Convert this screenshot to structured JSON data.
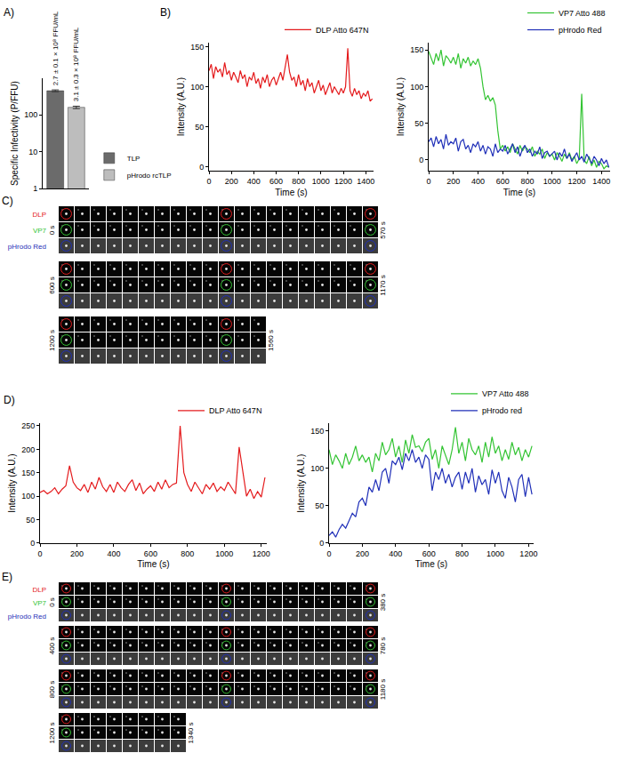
{
  "chart_data": [
    {
      "panel_label": "A)",
      "type": "bar",
      "categories": [
        null,
        null
      ],
      "series": [
        {
          "name": "TLP",
          "color": "#6b6b6b",
          "values": [
            450,
            null
          ],
          "errors": [
            25,
            null
          ]
        },
        {
          "name": "pHrodo rcTLP",
          "color": "#bdbdbd",
          "values": [
            null,
            160
          ],
          "errors": [
            null,
            12
          ]
        }
      ],
      "y_label": "Specific Infectivity (P/FFU)",
      "log": "y",
      "ylim": [
        1,
        1000
      ],
      "yticks": [
        1,
        10,
        100
      ],
      "annotations": [
        {
          "x": 0,
          "text": "2.7 ± 0.1 × 10⁸ FFU/mL"
        },
        {
          "x": 1,
          "text": "3.1 ± 0.3 × 10⁸ FFU/mL"
        }
      ],
      "tick_labels": "y",
      "legend": "right",
      "grid": false
    },
    {
      "panel_label": "B)",
      "type": "line",
      "x": [
        0,
        20,
        40,
        60,
        80,
        100,
        120,
        140,
        160,
        180,
        200,
        220,
        240,
        260,
        280,
        300,
        320,
        340,
        360,
        380,
        400,
        420,
        440,
        460,
        480,
        500,
        520,
        540,
        560,
        580,
        600,
        620,
        640,
        660,
        680,
        700,
        720,
        740,
        760,
        780,
        800,
        820,
        840,
        860,
        880,
        900,
        920,
        940,
        960,
        980,
        1000,
        1020,
        1040,
        1060,
        1080,
        1100,
        1120,
        1140,
        1160,
        1180,
        1200,
        1220,
        1240,
        1260,
        1280,
        1300,
        1320,
        1340,
        1360,
        1380,
        1400,
        1420,
        1440,
        1460
      ],
      "series": [
        {
          "name": "DLP Atto 647N",
          "color": "#e41a1c",
          "values": [
            120,
            128,
            110,
            125,
            118,
            122,
            112,
            130,
            115,
            120,
            108,
            118,
            112,
            105,
            120,
            110,
            115,
            100,
            112,
            108,
            118,
            104,
            110,
            98,
            112,
            105,
            115,
            100,
            108,
            112,
            102,
            110,
            118,
            108,
            125,
            140,
            118,
            108,
            112,
            100,
            115,
            102,
            108,
            95,
            110,
            100,
            105,
            92,
            100,
            108,
            95,
            102,
            90,
            98,
            105,
            92,
            100,
            95,
            90,
            98,
            92,
            100,
            148,
            95,
            88,
            98,
            90,
            95,
            85,
            92,
            88,
            95,
            82,
            85
          ]
        }
      ],
      "x_label": "Time (s)",
      "y_label": "Intensity (A.U.)",
      "xlim": [
        0,
        1470
      ],
      "xticks": [
        0,
        200,
        400,
        600,
        800,
        1000,
        1200,
        1400
      ],
      "ylim": [
        -5,
        155
      ],
      "yticks": [
        0,
        50,
        100,
        150
      ],
      "legend": "upper right",
      "grid": false
    },
    {
      "type": "line",
      "x": [
        0,
        20,
        40,
        60,
        80,
        100,
        120,
        140,
        160,
        180,
        200,
        220,
        240,
        260,
        280,
        300,
        320,
        340,
        360,
        380,
        400,
        420,
        440,
        460,
        480,
        500,
        520,
        540,
        560,
        580,
        600,
        620,
        640,
        660,
        680,
        700,
        720,
        740,
        760,
        780,
        800,
        820,
        840,
        860,
        880,
        900,
        920,
        940,
        960,
        980,
        1000,
        1020,
        1040,
        1060,
        1080,
        1100,
        1120,
        1140,
        1160,
        1180,
        1200,
        1220,
        1240,
        1260,
        1280,
        1300,
        1320,
        1340,
        1360,
        1380,
        1400,
        1420,
        1440,
        1460
      ],
      "series": [
        {
          "name": "VP7 Atto 488",
          "color": "#33c433",
          "values": [
            148,
            140,
            130,
            145,
            135,
            150,
            128,
            142,
            138,
            132,
            140,
            130,
            145,
            125,
            138,
            132,
            140,
            128,
            135,
            130,
            138,
            125,
            100,
            82,
            88,
            80,
            85,
            75,
            40,
            15,
            20,
            12,
            18,
            10,
            22,
            15,
            8,
            20,
            12,
            18,
            15,
            10,
            18,
            5,
            12,
            8,
            15,
            2,
            10,
            5,
            8,
            0,
            10,
            5,
            -2,
            8,
            2,
            10,
            0,
            5,
            -5,
            2,
            90,
            0,
            -5,
            5,
            -8,
            0,
            -10,
            -2,
            -5,
            -12,
            -8,
            -10
          ]
        },
        {
          "name": "pHrodo Red",
          "color": "#1f2fb8",
          "values": [
            25,
            30,
            18,
            32,
            22,
            28,
            15,
            35,
            20,
            25,
            22,
            30,
            12,
            25,
            28,
            15,
            20,
            10,
            22,
            18,
            25,
            12,
            20,
            8,
            18,
            15,
            5,
            22,
            10,
            15,
            12,
            20,
            8,
            15,
            22,
            10,
            18,
            5,
            15,
            20,
            10,
            15,
            5,
            12,
            8,
            18,
            2,
            10,
            12,
            5,
            8,
            12,
            0,
            10,
            5,
            15,
            2,
            8,
            -2,
            5,
            10,
            0,
            5,
            -3,
            8,
            2,
            -5,
            5,
            0,
            -8,
            2,
            -5,
            0,
            -10
          ]
        }
      ],
      "x_label": "Time (s)",
      "y_label": "Intensity (A.U.)",
      "xlim": [
        0,
        1470
      ],
      "xticks": [
        0,
        200,
        400,
        600,
        800,
        1000,
        1200,
        1400
      ],
      "ylim": [
        -15,
        160
      ],
      "yticks": [
        0,
        50,
        100,
        150
      ],
      "legend": "upper right",
      "grid": false
    },
    {
      "panel_label": "D)",
      "type": "line",
      "x": [
        0,
        20,
        40,
        60,
        80,
        100,
        120,
        140,
        160,
        180,
        200,
        220,
        240,
        260,
        280,
        300,
        320,
        340,
        360,
        380,
        400,
        420,
        440,
        460,
        480,
        500,
        520,
        540,
        560,
        580,
        600,
        620,
        640,
        660,
        680,
        700,
        720,
        740,
        760,
        780,
        800,
        820,
        840,
        860,
        880,
        900,
        920,
        940,
        960,
        980,
        1000,
        1020,
        1040,
        1060,
        1080,
        1100,
        1120,
        1140,
        1160,
        1180,
        1200,
        1220
      ],
      "series": [
        {
          "name": "DLP Atto 647N",
          "color": "#e41a1c",
          "values": [
            108,
            112,
            105,
            110,
            118,
            105,
            115,
            122,
            165,
            130,
            118,
            112,
            125,
            108,
            130,
            115,
            140,
            120,
            110,
            125,
            108,
            130,
            118,
            110,
            125,
            135,
            112,
            128,
            105,
            115,
            122,
            110,
            130,
            115,
            135,
            118,
            125,
            128,
            250,
            150,
            125,
            110,
            130,
            118,
            105,
            125,
            115,
            128,
            110,
            120,
            112,
            130,
            118,
            105,
            205,
            150,
            100,
            115,
            95,
            110,
            98,
            140
          ]
        }
      ],
      "x_label": "Time (s)",
      "y_label": "Intensity (A.U.)",
      "xlim": [
        0,
        1230
      ],
      "xticks": [
        0,
        200,
        400,
        600,
        800,
        1000,
        1200
      ],
      "ylim": [
        0,
        255
      ],
      "yticks": [
        0,
        50,
        100,
        150,
        200,
        250
      ],
      "legend": "upper right",
      "grid": false
    },
    {
      "type": "line",
      "x": [
        0,
        20,
        40,
        60,
        80,
        100,
        120,
        140,
        160,
        180,
        200,
        220,
        240,
        260,
        280,
        300,
        320,
        340,
        360,
        380,
        400,
        420,
        440,
        460,
        480,
        500,
        520,
        540,
        560,
        580,
        600,
        620,
        640,
        660,
        680,
        700,
        720,
        740,
        760,
        780,
        800,
        820,
        840,
        860,
        880,
        900,
        920,
        940,
        960,
        980,
        1000,
        1020,
        1040,
        1060,
        1080,
        1100,
        1120,
        1140,
        1160,
        1180,
        1200,
        1220
      ],
      "series": [
        {
          "name": "VP7 Atto 488",
          "color": "#33c433",
          "values": [
            125,
            105,
            118,
            110,
            100,
            120,
            105,
            115,
            130,
            110,
            118,
            108,
            115,
            95,
            120,
            110,
            135,
            118,
            125,
            140,
            115,
            130,
            108,
            138,
            120,
            145,
            128,
            130,
            122,
            135,
            140,
            112,
            125,
            100,
            130,
            118,
            105,
            125,
            155,
            120,
            135,
            110,
            140,
            125,
            118,
            130,
            108,
            135,
            115,
            142,
            120,
            130,
            110,
            125,
            112,
            135,
            118,
            128,
            110,
            125,
            115,
            130
          ]
        },
        {
          "name": "pHrodo red",
          "color": "#1f2fb8",
          "values": [
            10,
            15,
            8,
            18,
            25,
            20,
            30,
            40,
            35,
            55,
            60,
            50,
            75,
            68,
            85,
            70,
            95,
            100,
            80,
            110,
            105,
            115,
            98,
            120,
            110,
            125,
            108,
            115,
            100,
            118,
            112,
            70,
            95,
            85,
            100,
            80,
            92,
            75,
            88,
            95,
            72,
            95,
            80,
            100,
            68,
            90,
            78,
            85,
            65,
            98,
            80,
            95,
            70,
            60,
            88,
            75,
            55,
            85,
            92,
            62,
            88,
            65
          ]
        }
      ],
      "x_label": "Time (s)",
      "y_label": "Intensity (A.U.)",
      "xlim": [
        0,
        1230
      ],
      "xticks": [
        0,
        200,
        400,
        600,
        800,
        1000,
        1200
      ],
      "ylim": [
        0,
        160
      ],
      "yticks": [
        0,
        50,
        100,
        150
      ],
      "legend": "upper right",
      "grid": false
    }
  ],
  "montages": [
    {
      "panel_label": "C)",
      "channels": [
        {
          "name": "DLP",
          "color": "#e41a1c"
        },
        {
          "name": "VP7",
          "color": "#33c433"
        },
        {
          "name": "pHrodo Red",
          "color": "#1f2fb8"
        }
      ],
      "rows": [
        {
          "start": "0 s",
          "end": "570 s",
          "frames": 20
        },
        {
          "start": "600 s",
          "end": "1170 s",
          "frames": 20
        },
        {
          "start": "1200 s",
          "end": "1560 s",
          "frames": 13
        }
      ]
    },
    {
      "panel_label": "E)",
      "channels": [
        {
          "name": "DLP",
          "color": "#e41a1c"
        },
        {
          "name": "VP7",
          "color": "#33c433"
        },
        {
          "name": "pHrodo Red",
          "color": "#1f2fb8"
        }
      ],
      "rows": [
        {
          "start": "0 s",
          "end": "380 s",
          "frames": 20
        },
        {
          "start": "400 s",
          "end": "780 s",
          "frames": 20
        },
        {
          "start": "800 s",
          "end": "1180 s",
          "frames": 20
        },
        {
          "start": "1200 s",
          "end": "1340 s",
          "frames": 8
        }
      ]
    }
  ]
}
